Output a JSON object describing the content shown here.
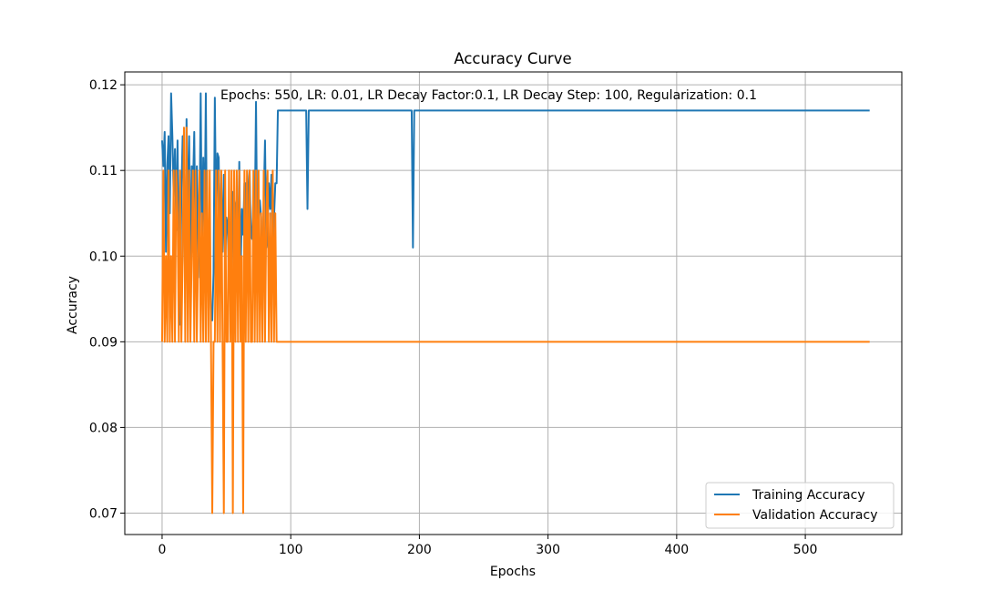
{
  "chart_data": {
    "type": "line",
    "title": "Accuracy Curve",
    "xlabel": "Epochs",
    "ylabel": "Accuracy",
    "xlim": [
      -29,
      575
    ],
    "ylim": [
      0.0675,
      0.1215
    ],
    "xticks": [
      0,
      100,
      200,
      300,
      400,
      500
    ],
    "yticks": [
      0.07,
      0.08,
      0.09,
      0.1,
      0.11,
      0.12
    ],
    "ytick_labels": [
      "0.07",
      "0.08",
      "0.09",
      "0.10",
      "0.11",
      "0.12"
    ],
    "grid": true,
    "legend_position": "bottom-right",
    "annotation": "Epochs: 550, LR: 0.01, LR Decay Factor:0.1, LR Decay Step: 100, Regularization: 0.1",
    "series": [
      {
        "name": "Training Accuracy",
        "color": "#1f77b4",
        "x": [
          0,
          1,
          2,
          3,
          4,
          5,
          6,
          7,
          8,
          9,
          10,
          11,
          12,
          13,
          14,
          15,
          16,
          17,
          18,
          19,
          20,
          21,
          22,
          23,
          24,
          25,
          26,
          27,
          28,
          29,
          30,
          31,
          32,
          33,
          34,
          35,
          36,
          37,
          38,
          39,
          40,
          41,
          42,
          43,
          44,
          45,
          46,
          47,
          48,
          49,
          50,
          51,
          52,
          53,
          54,
          55,
          56,
          57,
          58,
          59,
          60,
          61,
          62,
          63,
          64,
          65,
          66,
          67,
          68,
          69,
          70,
          71,
          72,
          73,
          74,
          75,
          76,
          77,
          78,
          79,
          80,
          81,
          82,
          83,
          84,
          85,
          86,
          87,
          88,
          89,
          90,
          91,
          92,
          93,
          94,
          95,
          96,
          97,
          98,
          99,
          100,
          101,
          112,
          113,
          114,
          115,
          194,
          195,
          196,
          197,
          550
        ],
        "y": [
          0.1135,
          0.1105,
          0.1145,
          0.1005,
          0.1105,
          0.114,
          0.105,
          0.119,
          0.114,
          0.107,
          0.1125,
          0.103,
          0.1135,
          0.0995,
          0.092,
          0.1075,
          0.114,
          0.1105,
          0.0945,
          0.116,
          0.1025,
          0.114,
          0.0975,
          0.1105,
          0.108,
          0.1145,
          0.1005,
          0.1105,
          0.0975,
          0.103,
          0.119,
          0.1,
          0.1115,
          0.1025,
          0.119,
          0.097,
          0.099,
          0.1005,
          0.093,
          0.0925,
          0.098,
          0.1185,
          0.1035,
          0.112,
          0.1115,
          0.101,
          0.1085,
          0.1005,
          0.1095,
          0.0985,
          0.1045,
          0.1035,
          0.0975,
          0.098,
          0.1015,
          0.1075,
          0.097,
          0.106,
          0.1065,
          0.1005,
          0.111,
          0.0975,
          0.1055,
          0.1025,
          0.1085,
          0.1085,
          0.0985,
          0.108,
          0.11,
          0.1025,
          0.102,
          0.107,
          0.1035,
          0.118,
          0.1005,
          0.1045,
          0.1065,
          0.1045,
          0.095,
          0.1065,
          0.1135,
          0.101,
          0.1035,
          0.1085,
          0.1055,
          0.1095,
          0.1,
          0.1045,
          0.1085,
          0.1085,
          0.117,
          0.117,
          0.117,
          0.117,
          0.117,
          0.117,
          0.117,
          0.117,
          0.117,
          0.117,
          0.117,
          0.117,
          0.117,
          0.1055,
          0.117,
          0.117,
          0.117,
          0.101,
          0.117,
          0.117,
          0.117
        ]
      },
      {
        "name": "Validation Accuracy",
        "color": "#ff7f0e",
        "x": [
          0,
          1,
          2,
          3,
          4,
          5,
          6,
          7,
          8,
          9,
          10,
          11,
          12,
          13,
          14,
          15,
          16,
          17,
          18,
          19,
          20,
          21,
          22,
          23,
          24,
          25,
          26,
          27,
          28,
          29,
          30,
          31,
          32,
          33,
          34,
          35,
          36,
          37,
          38,
          39,
          40,
          41,
          42,
          43,
          44,
          45,
          46,
          47,
          48,
          49,
          50,
          51,
          52,
          53,
          54,
          55,
          56,
          57,
          58,
          59,
          60,
          61,
          62,
          63,
          64,
          65,
          66,
          67,
          68,
          69,
          70,
          71,
          72,
          73,
          74,
          75,
          76,
          77,
          78,
          79,
          80,
          81,
          82,
          83,
          84,
          85,
          86,
          87,
          88,
          89,
          90,
          91,
          92,
          93,
          94,
          95,
          96,
          97,
          98,
          99,
          100,
          101,
          550
        ],
        "y": [
          0.09,
          0.11,
          0.09,
          0.1,
          0.09,
          0.11,
          0.09,
          0.1,
          0.09,
          0.11,
          0.09,
          0.11,
          0.105,
          0.09,
          0.11,
          0.09,
          0.1,
          0.115,
          0.09,
          0.115,
          0.09,
          0.11,
          0.09,
          0.1,
          0.11,
          0.09,
          0.11,
          0.09,
          0.1,
          0.11,
          0.09,
          0.105,
          0.09,
          0.11,
          0.09,
          0.11,
          0.09,
          0.11,
          0.09,
          0.07,
          0.09,
          0.09,
          0.11,
          0.09,
          0.11,
          0.09,
          0.11,
          0.09,
          0.07,
          0.11,
          0.09,
          0.09,
          0.11,
          0.09,
          0.11,
          0.07,
          0.11,
          0.09,
          0.11,
          0.09,
          0.11,
          0.09,
          0.1,
          0.07,
          0.11,
          0.09,
          0.11,
          0.09,
          0.11,
          0.09,
          0.09,
          0.11,
          0.09,
          0.11,
          0.09,
          0.11,
          0.09,
          0.105,
          0.09,
          0.11,
          0.09,
          0.105,
          0.11,
          0.09,
          0.105,
          0.09,
          0.11,
          0.09,
          0.105,
          0.09,
          0.09,
          0.09,
          0.09,
          0.09,
          0.09,
          0.09,
          0.09,
          0.09,
          0.09,
          0.09,
          0.09,
          0.09,
          0.09
        ]
      }
    ]
  }
}
